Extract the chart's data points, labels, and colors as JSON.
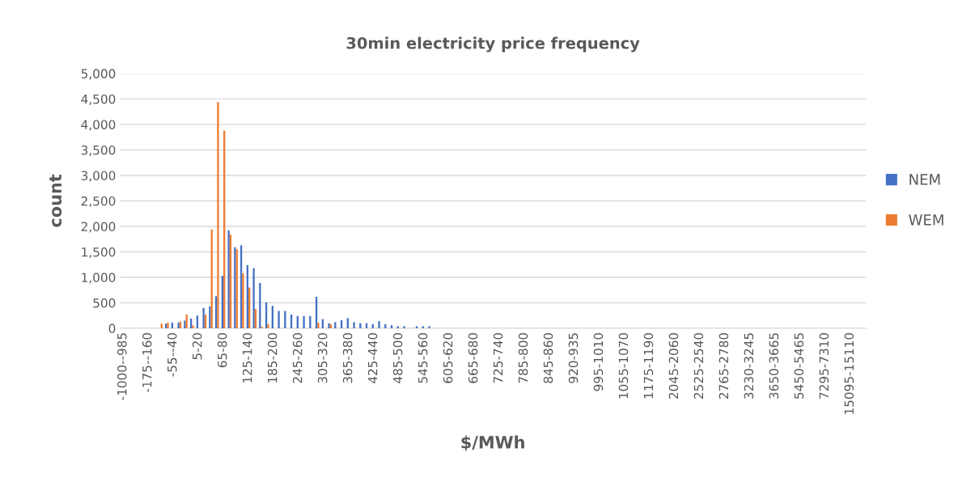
{
  "chart_data": {
    "type": "bar",
    "title": "30min electricity price frequency",
    "xlabel": "$/MWh",
    "ylabel": "count",
    "categories": [
      "-1000--985",
      null,
      null,
      null,
      "-175--160",
      null,
      null,
      null,
      "-55--40",
      null,
      null,
      null,
      "5-20",
      null,
      null,
      null,
      "65-80",
      null,
      null,
      null,
      "125-140",
      null,
      null,
      null,
      "185-200",
      null,
      null,
      null,
      "245-260",
      null,
      null,
      null,
      "305-320",
      null,
      null,
      null,
      "365-380",
      null,
      null,
      null,
      "425-440",
      null,
      null,
      null,
      "485-500",
      null,
      null,
      null,
      "545-560",
      null,
      null,
      null,
      "605-620",
      null,
      null,
      null,
      "665-680",
      null,
      null,
      null,
      "725-740",
      null,
      null,
      null,
      "785-800",
      null,
      null,
      null,
      "845-860",
      null,
      null,
      null,
      "920-935",
      null,
      null,
      null,
      "995-1010",
      null,
      null,
      null,
      "1055-1070",
      null,
      null,
      null,
      "1175-1190",
      null,
      null,
      null,
      "2045-2060",
      null,
      null,
      null,
      "2525-2540",
      null,
      null,
      null,
      "2765-2780",
      null,
      null,
      null,
      "3230-3245",
      null,
      null,
      null,
      "3650-3665",
      null,
      null,
      null,
      "5450-5465",
      null,
      null,
      null,
      "7295-7310",
      null,
      null,
      null,
      "15095-15110",
      null,
      null
    ],
    "series": [
      {
        "name": "NEM",
        "color": "#4472c4",
        "values": [
          0,
          0,
          0,
          0,
          0,
          0,
          0,
          90,
          110,
          110,
          150,
          190,
          250,
          400,
          430,
          630,
          1030,
          1920,
          1590,
          1630,
          1240,
          1180,
          890,
          510,
          440,
          340,
          340,
          270,
          240,
          240,
          240,
          620,
          180,
          100,
          120,
          160,
          200,
          120,
          100,
          100,
          80,
          140,
          80,
          60,
          40,
          40,
          0,
          40,
          40,
          40,
          0,
          0,
          0,
          0,
          0,
          0,
          0,
          0,
          0,
          0,
          0,
          0,
          0,
          0,
          0,
          0,
          0,
          0,
          0,
          0,
          0,
          0,
          0,
          0,
          0,
          0,
          0,
          0,
          0,
          0,
          0,
          0,
          0,
          0,
          0,
          0,
          0,
          0,
          0,
          0,
          0,
          0,
          0,
          0,
          0,
          0,
          0,
          0,
          0,
          0,
          0,
          0,
          0,
          0,
          0,
          0,
          0,
          0,
          0,
          0,
          0,
          0,
          0,
          0,
          0,
          0,
          0,
          0,
          0
        ]
      },
      {
        "name": "WEM",
        "color": "#ed7d31",
        "values": [
          0,
          0,
          0,
          0,
          0,
          0,
          90,
          110,
          0,
          130,
          270,
          60,
          0,
          270,
          1940,
          4440,
          3880,
          1840,
          1550,
          1080,
          800,
          380,
          30,
          80,
          0,
          0,
          0,
          0,
          0,
          0,
          0,
          110,
          0,
          80,
          0,
          0,
          0,
          0,
          0,
          0,
          0,
          0,
          0,
          0,
          0,
          0,
          0,
          0,
          0,
          0,
          0,
          0,
          0,
          0,
          0,
          0,
          0,
          0,
          0,
          0,
          0,
          0,
          0,
          0,
          0,
          0,
          0,
          0,
          0,
          0,
          0,
          0,
          0,
          0,
          0,
          0,
          0,
          0,
          0,
          0,
          0,
          0,
          0,
          0,
          0,
          0,
          0,
          0,
          0,
          0,
          0,
          0,
          0,
          0,
          0,
          0,
          0,
          0,
          0,
          0,
          0,
          0,
          0,
          0,
          0,
          0,
          0,
          0,
          0,
          0,
          0,
          0,
          0,
          0,
          0,
          0,
          0,
          0,
          0
        ]
      }
    ],
    "ylim": [
      0,
      5000
    ],
    "yticks": [
      {
        "value": 0,
        "label": "0"
      },
      {
        "value": 500,
        "label": "500"
      },
      {
        "value": 1000,
        "label": "1,000"
      },
      {
        "value": 1500,
        "label": "1,500"
      },
      {
        "value": 2000,
        "label": "2,000"
      },
      {
        "value": 2500,
        "label": "2,500"
      },
      {
        "value": 3000,
        "label": "3,000"
      },
      {
        "value": 3500,
        "label": "3,500"
      },
      {
        "value": 4000,
        "label": "4,000"
      },
      {
        "value": 4500,
        "label": "4,500"
      },
      {
        "value": 5000,
        "label": "5,000"
      }
    ],
    "grid": "y",
    "legend": "right"
  }
}
